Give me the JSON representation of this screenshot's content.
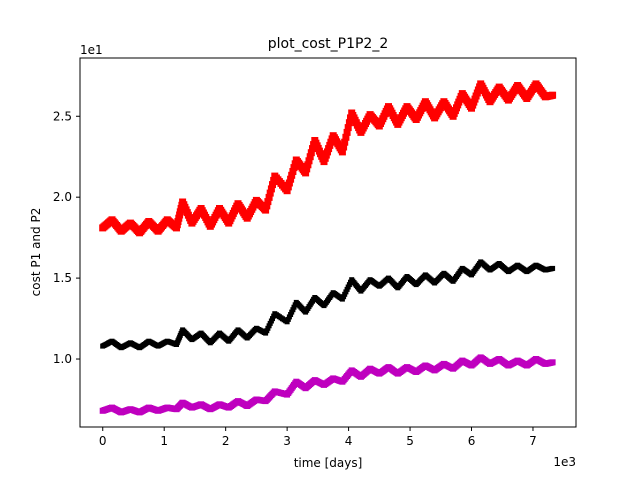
{
  "chart_data": {
    "type": "scatter",
    "title": "plot_cost_P1P2_2",
    "xlabel": "time [days]",
    "ylabel": "cost P1 and P2",
    "x_offset_text": "1e3",
    "y_offset_text": "1e1",
    "xlim": [
      -0.37,
      7.7
    ],
    "ylim": [
      0.58,
      2.86
    ],
    "x_ticks": [
      0,
      1,
      2,
      3,
      4,
      5,
      6,
      7
    ],
    "x_tick_labels": [
      "0",
      "1",
      "2",
      "3",
      "4",
      "5",
      "6",
      "7"
    ],
    "y_ticks": [
      1.0,
      1.5,
      2.0,
      2.5
    ],
    "y_tick_labels": [
      "1.0",
      "1.5",
      "2.0",
      "2.5"
    ],
    "grid": false,
    "legend": "none",
    "series": [
      {
        "color": "#ff0000",
        "marker_size": 7,
        "x": [
          0.0,
          0.15,
          0.3,
          0.45,
          0.6,
          0.75,
          0.9,
          1.05,
          1.2,
          1.3,
          1.45,
          1.6,
          1.75,
          1.9,
          2.05,
          2.2,
          2.35,
          2.5,
          2.65,
          2.8,
          3.0,
          3.15,
          3.3,
          3.45,
          3.6,
          3.75,
          3.9,
          4.05,
          4.2,
          4.35,
          4.5,
          4.65,
          4.8,
          4.95,
          5.1,
          5.25,
          5.4,
          5.55,
          5.7,
          5.85,
          6.0,
          6.15,
          6.3,
          6.45,
          6.6,
          6.75,
          6.9,
          7.05,
          7.2,
          7.32
        ],
        "y": [
          1.81,
          1.86,
          1.79,
          1.84,
          1.78,
          1.85,
          1.79,
          1.86,
          1.81,
          1.97,
          1.84,
          1.93,
          1.82,
          1.93,
          1.84,
          1.96,
          1.87,
          1.98,
          1.92,
          2.13,
          2.04,
          2.23,
          2.15,
          2.35,
          2.22,
          2.38,
          2.28,
          2.52,
          2.4,
          2.51,
          2.44,
          2.56,
          2.45,
          2.56,
          2.48,
          2.59,
          2.49,
          2.59,
          2.5,
          2.64,
          2.55,
          2.7,
          2.59,
          2.68,
          2.6,
          2.69,
          2.61,
          2.7,
          2.62,
          2.63
        ]
      },
      {
        "color": "#000000",
        "marker_size": 5,
        "x": [
          0.0,
          0.15,
          0.3,
          0.45,
          0.6,
          0.75,
          0.9,
          1.05,
          1.2,
          1.3,
          1.45,
          1.6,
          1.75,
          1.9,
          2.05,
          2.2,
          2.35,
          2.5,
          2.65,
          2.8,
          3.0,
          3.15,
          3.3,
          3.45,
          3.6,
          3.75,
          3.9,
          4.05,
          4.2,
          4.35,
          4.5,
          4.65,
          4.8,
          4.95,
          5.1,
          5.25,
          5.4,
          5.55,
          5.7,
          5.85,
          6.0,
          6.15,
          6.3,
          6.45,
          6.6,
          6.75,
          6.9,
          7.05,
          7.2,
          7.32
        ],
        "y": [
          1.08,
          1.11,
          1.07,
          1.1,
          1.07,
          1.11,
          1.08,
          1.11,
          1.09,
          1.18,
          1.12,
          1.16,
          1.1,
          1.16,
          1.11,
          1.18,
          1.13,
          1.19,
          1.16,
          1.28,
          1.23,
          1.35,
          1.29,
          1.38,
          1.33,
          1.41,
          1.37,
          1.49,
          1.42,
          1.49,
          1.45,
          1.5,
          1.44,
          1.51,
          1.46,
          1.52,
          1.47,
          1.53,
          1.48,
          1.56,
          1.52,
          1.6,
          1.55,
          1.59,
          1.54,
          1.58,
          1.54,
          1.58,
          1.55,
          1.56
        ]
      },
      {
        "color": "#bf00bf",
        "marker_size": 6,
        "x": [
          0.0,
          0.15,
          0.3,
          0.45,
          0.6,
          0.75,
          0.9,
          1.05,
          1.2,
          1.3,
          1.45,
          1.6,
          1.75,
          1.9,
          2.05,
          2.2,
          2.35,
          2.5,
          2.65,
          2.8,
          3.0,
          3.15,
          3.3,
          3.45,
          3.6,
          3.75,
          3.9,
          4.05,
          4.2,
          4.35,
          4.5,
          4.65,
          4.8,
          4.95,
          5.1,
          5.25,
          5.4,
          5.55,
          5.7,
          5.85,
          6.0,
          6.15,
          6.3,
          6.45,
          6.6,
          6.75,
          6.9,
          7.05,
          7.2,
          7.32
        ],
        "y": [
          0.68,
          0.7,
          0.67,
          0.69,
          0.67,
          0.7,
          0.68,
          0.7,
          0.69,
          0.73,
          0.7,
          0.72,
          0.69,
          0.72,
          0.7,
          0.74,
          0.71,
          0.75,
          0.74,
          0.8,
          0.78,
          0.86,
          0.82,
          0.87,
          0.84,
          0.88,
          0.86,
          0.93,
          0.89,
          0.94,
          0.91,
          0.95,
          0.91,
          0.95,
          0.92,
          0.96,
          0.93,
          0.97,
          0.94,
          0.99,
          0.96,
          1.01,
          0.97,
          1.0,
          0.96,
          0.99,
          0.96,
          1.0,
          0.97,
          0.98
        ]
      }
    ]
  }
}
